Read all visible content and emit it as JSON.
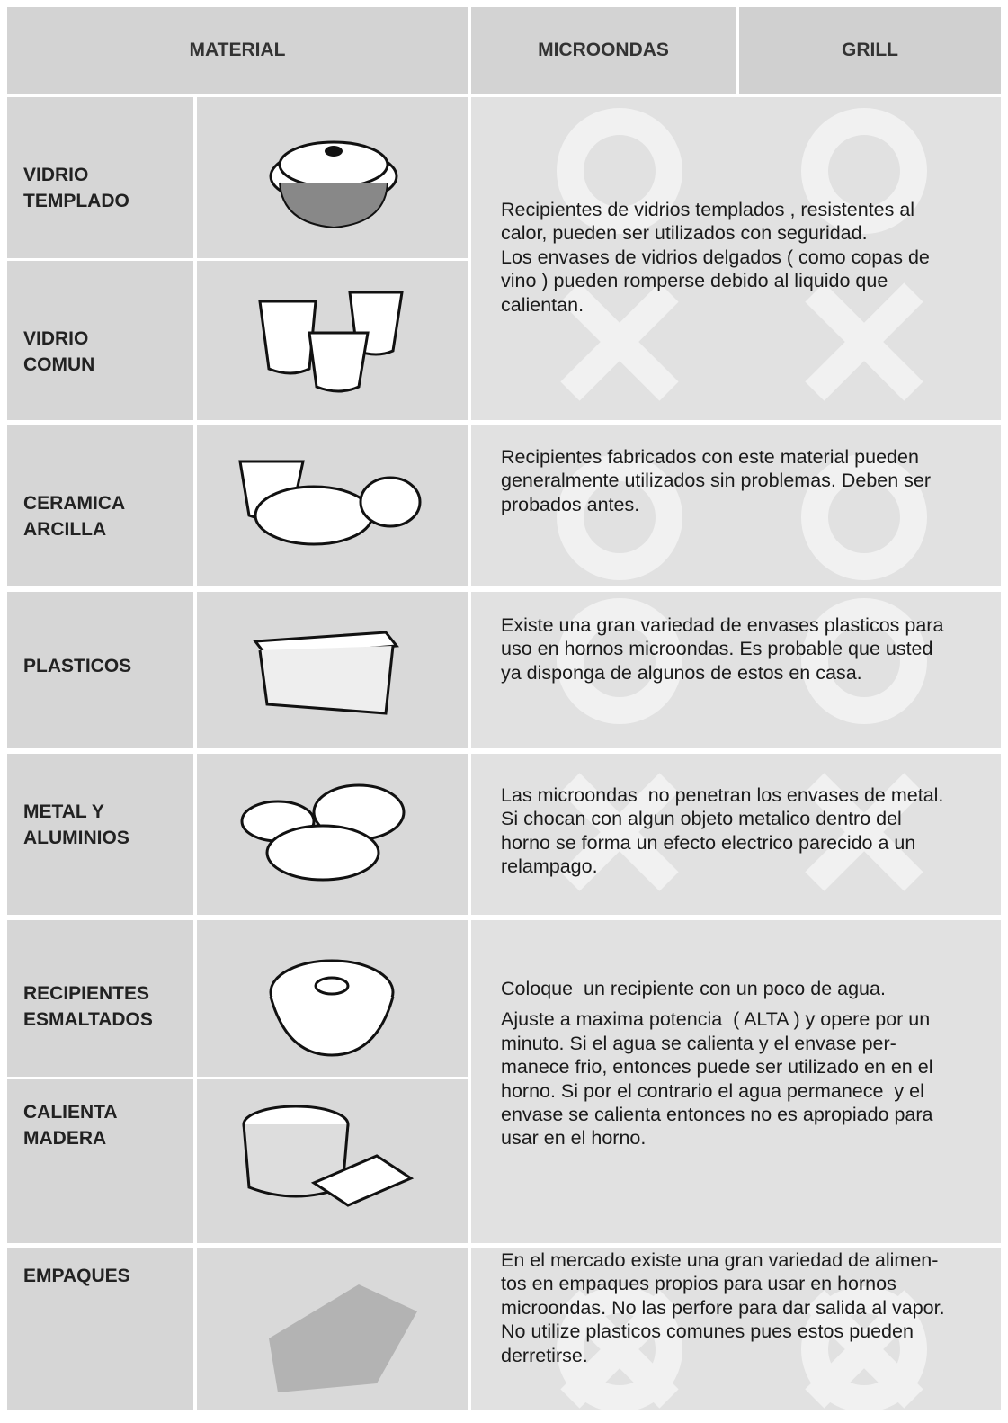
{
  "header": {
    "material": "MATERIAL",
    "microondas": "MICROONDAS",
    "grill": "GRILL"
  },
  "groups": [
    {
      "materials": [
        [
          "VIDRIO",
          "TEMPLADO"
        ],
        [
          "VIDRIO",
          "COMUN"
        ]
      ],
      "description": [
        [
          "Recipientes de vidrios templados , resistentes al",
          "calor, pueden ser utilizados con seguridad.",
          "Los envases de vidrios delgados ( como copas de",
          "vino ) pueden romperse debido al liquido que",
          "calientan."
        ]
      ]
    },
    {
      "materials": [
        [
          "CERAMICA",
          "ARCILLA"
        ]
      ],
      "description": [
        [
          "Recipientes fabricados con este material pueden",
          "generalmente utilizados sin problemas. Deben ser",
          "probados antes."
        ]
      ]
    },
    {
      "materials": [
        [
          "PLASTICOS"
        ]
      ],
      "description": [
        [
          "Existe una gran variedad de envases plasticos para",
          "uso en hornos microondas. Es probable que usted",
          "ya disponga de algunos de estos en casa."
        ]
      ]
    },
    {
      "materials": [
        [
          "METAL Y",
          "ALUMINIOS"
        ]
      ],
      "description": [
        [
          "Las microondas  no penetran los envases de metal.",
          "Si chocan con algun objeto metalico dentro del",
          "horno se forma un efecto electrico parecido a un",
          "relampago."
        ]
      ]
    },
    {
      "materials": [
        [
          "RECIPIENTES",
          "ESMALTADOS"
        ],
        [
          "CALIENTA",
          "MADERA"
        ]
      ],
      "description": [
        [
          "Coloque  un recipiente con un poco de agua."
        ],
        [
          "Ajuste a maxima potencia  ( ALTA ) y opere por un",
          "minuto. Si el agua se calienta y el envase per-",
          "manece frio, entonces puede ser utilizado en en el",
          "horno. Si por el contrario el agua permanece  y el",
          "envase se calienta entonces no es apropiado para",
          "usar en el horno."
        ]
      ]
    },
    {
      "materials": [
        [
          "EMPAQUES"
        ]
      ],
      "description": [
        [
          "En el mercado existe una gran variedad de alimen-",
          "tos en empaques propios para usar en hornos",
          "microondas. No las perfore para dar salida al vapor.",
          "No utilize plasticos comunes pues estos pueden",
          "derretirse."
        ]
      ]
    }
  ]
}
